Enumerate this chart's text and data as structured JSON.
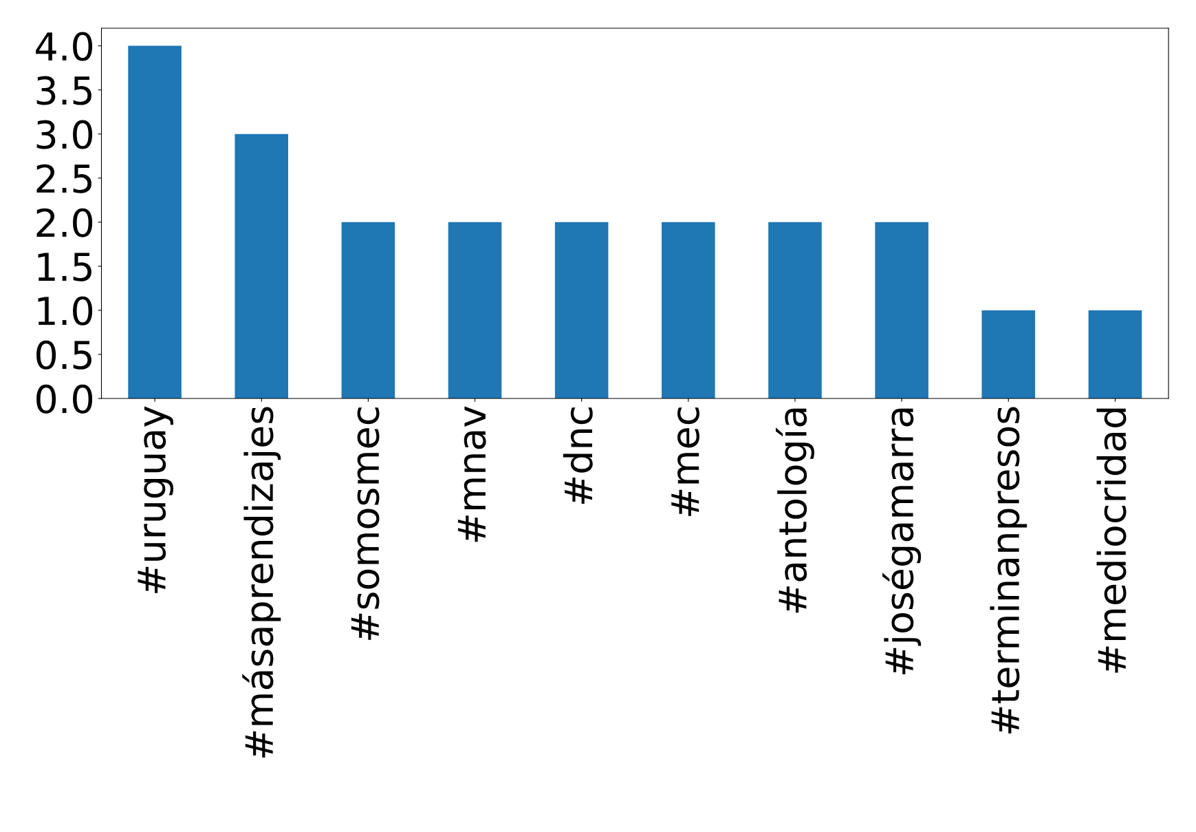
{
  "chart_data": {
    "type": "bar",
    "categories": [
      "#uruguay",
      "#másaprendizajes",
      "#somosmec",
      "#mnav",
      "#dnc",
      "#mec",
      "#antología",
      "#joségamarra",
      "#terminanpresos",
      "#mediocridad"
    ],
    "values": [
      4,
      3,
      2,
      2,
      2,
      2,
      2,
      2,
      1,
      1
    ],
    "color": "#1f77b4",
    "ylim": [
      0,
      4.2
    ],
    "yticks": [
      {
        "value": 0,
        "label": "0.0"
      },
      {
        "value": 0.5,
        "label": "0.5"
      },
      {
        "value": 1,
        "label": "1.0"
      },
      {
        "value": 1.5,
        "label": "1.5"
      },
      {
        "value": 2,
        "label": "2.0"
      },
      {
        "value": 2.5,
        "label": "2.5"
      },
      {
        "value": 3,
        "label": "3.0"
      },
      {
        "value": 3.5,
        "label": "3.5"
      },
      {
        "value": 4,
        "label": "4.0"
      }
    ],
    "grid": false,
    "legend": false
  }
}
